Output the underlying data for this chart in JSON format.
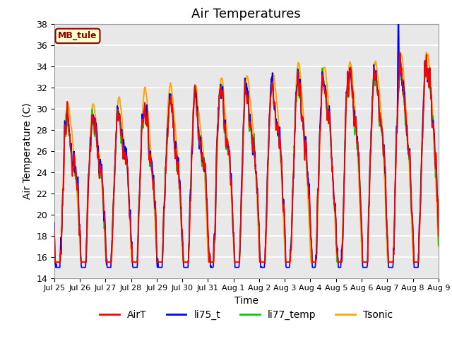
{
  "title": "Air Temperatures",
  "xlabel": "Time",
  "ylabel": "Air Temperature (C)",
  "ylim": [
    14,
    38
  ],
  "yticks": [
    14,
    16,
    18,
    20,
    22,
    24,
    26,
    28,
    30,
    32,
    34,
    36,
    38
  ],
  "xtick_labels": [
    "Jul 25",
    "Jul 26",
    "Jul 27",
    "Jul 28",
    "Jul 29",
    "Jul 30",
    "Jul 31",
    "Aug 1",
    "Aug 2",
    "Aug 3",
    "Aug 4",
    "Aug 5",
    "Aug 6",
    "Aug 7",
    "Aug 8",
    "Aug 9"
  ],
  "annotation_text": "MB_tule",
  "annotation_color": "#8B0000",
  "annotation_bg": "#FFFFCC",
  "line_colors": {
    "AirT": "#FF0000",
    "li75_t": "#0000FF",
    "li77_temp": "#00CC00",
    "Tsonic": "#FFA500"
  },
  "line_widths": {
    "AirT": 1.2,
    "li75_t": 1.2,
    "li77_temp": 1.2,
    "Tsonic": 1.4
  },
  "bg_color": "#E8E8E8",
  "title_fontsize": 13,
  "label_fontsize": 10,
  "tick_fontsize": 9
}
